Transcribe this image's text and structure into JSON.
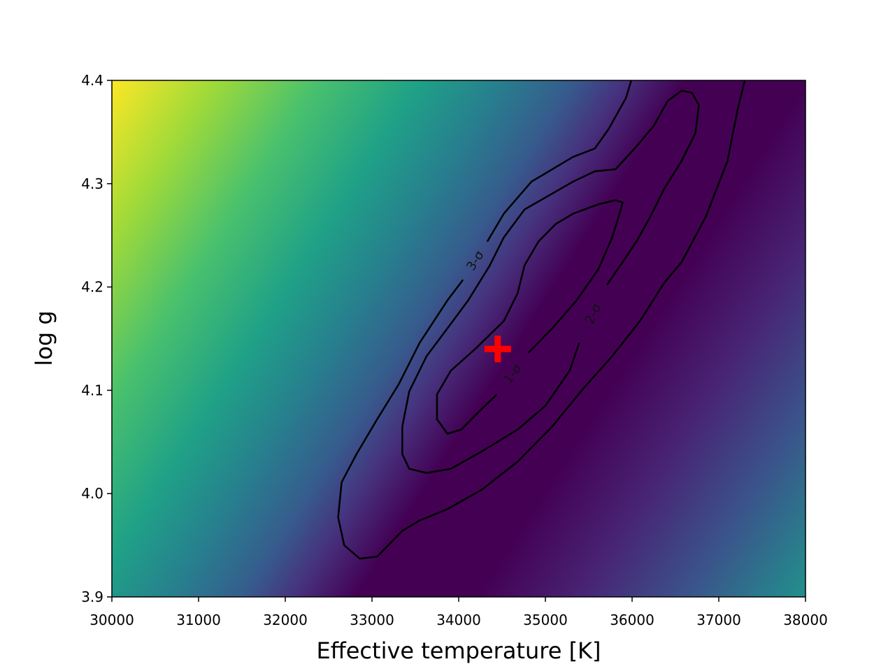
{
  "chart_data": {
    "type": "contour",
    "x_label": "Effective temperature [K]",
    "y_label": "log g",
    "xlim": [
      30000,
      38000
    ],
    "ylim": [
      3.9,
      4.4
    ],
    "xticks": [
      30000,
      31000,
      32000,
      33000,
      34000,
      35000,
      36000,
      37000,
      38000
    ],
    "yticks": [
      3.9,
      {
        "value": 4,
        "label": "4.0"
      },
      4.1,
      4.2,
      4.3,
      4.4
    ],
    "series": [
      {
        "name": "1-σ",
        "color": "#000000",
        "x": [
          34800,
          35080,
          35360,
          35610,
          35770,
          35870,
          35890,
          35810,
          35610,
          35320,
          35120,
          34920,
          34760,
          34680,
          34520,
          34190,
          33910,
          33750,
          33750,
          33870,
          34030,
          34230,
          34440
        ],
        "y": [
          4.136,
          4.16,
          4.187,
          4.217,
          4.248,
          4.275,
          4.282,
          4.284,
          4.28,
          4.271,
          4.261,
          4.244,
          4.221,
          4.194,
          4.167,
          4.14,
          4.119,
          4.096,
          4.072,
          4.058,
          4.062,
          4.079,
          4.096
        ]
      },
      {
        "name": "2-σ",
        "color": "#000000",
        "x": [
          35710,
          35890,
          36050,
          36210,
          36370,
          36570,
          36730,
          36770,
          36690,
          36570,
          36410,
          36250,
          36050,
          35810,
          35570,
          35320,
          34760,
          34520,
          34360,
          34110,
          33870,
          33630,
          33430,
          33350,
          33350,
          33430,
          33630,
          33910,
          34270,
          34680,
          35000,
          35280,
          35390
        ],
        "y": [
          4.202,
          4.224,
          4.244,
          4.268,
          4.295,
          4.322,
          4.349,
          4.376,
          4.388,
          4.39,
          4.38,
          4.356,
          4.336,
          4.314,
          4.312,
          4.302,
          4.275,
          4.248,
          4.221,
          4.187,
          4.16,
          4.133,
          4.099,
          4.065,
          4.038,
          4.024,
          4.02,
          4.024,
          4.041,
          4.062,
          4.085,
          4.119,
          4.146
        ]
      },
      {
        "name": "3-σ",
        "color": "#000000",
        "x": [
          35990,
          35930,
          35730,
          35570,
          35320,
          34840,
          34520,
          34330,
          null,
          34050,
          33870,
          33550,
          33310,
          33060,
          32820,
          32650,
          32610,
          32680,
          32860,
          33060,
          33350,
          33550,
          33870,
          34270,
          34680,
          35080,
          35440,
          35770,
          36090,
          36370,
          36570,
          36850,
          37100,
          37220,
          37300
        ],
        "y": [
          4.4,
          4.383,
          4.353,
          4.334,
          4.326,
          4.302,
          4.271,
          4.244,
          null,
          4.207,
          4.187,
          4.146,
          4.106,
          4.072,
          4.038,
          4.011,
          3.977,
          3.95,
          3.937,
          3.939,
          3.964,
          3.974,
          3.985,
          4.004,
          4.031,
          4.065,
          4.102,
          4.133,
          4.167,
          4.204,
          4.224,
          4.268,
          4.322,
          4.373,
          4.4
        ]
      }
    ],
    "best_fit": {
      "x": 34450,
      "y": 4.14,
      "color": "#ff0000"
    }
  }
}
